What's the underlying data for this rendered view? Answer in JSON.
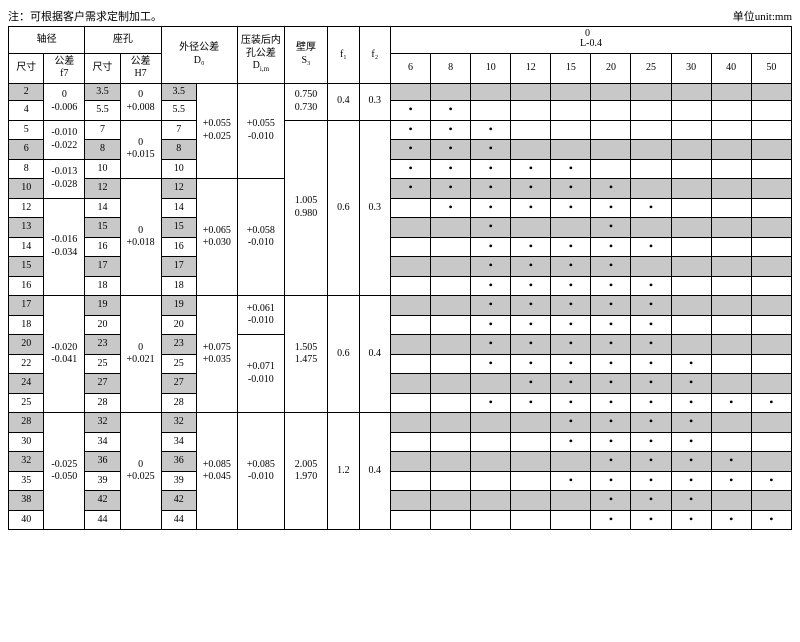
{
  "note": "注：可根据客户需求定制加工。",
  "unit_label": "单位unit:mm",
  "hdr": {
    "shaft_dia": "轴径",
    "seat_hole": "座孔",
    "od_tol": "外径公差",
    "d0_sym": "D₀",
    "press_bore": "压装后内",
    "press_bore2": "孔公差",
    "dim_sym": "D",
    "wall": "壁厚",
    "s3_sym": "S₃",
    "f1": "f₁",
    "f2": "f₂",
    "dim": "尺寸",
    "tol_f7": "公差",
    "f7": "f7",
    "tol_h7": "公差",
    "h7": "H7",
    "L": "L",
    "L_tol_up": "0",
    "L_tol_low": "-0.4"
  },
  "L_cols": [
    "6",
    "8",
    "10",
    "12",
    "15",
    "20",
    "25",
    "30",
    "40",
    "50"
  ],
  "tol": {
    "f7_a": [
      "0",
      "-0.006"
    ],
    "f7_b": [
      "-0.010",
      "-0.022"
    ],
    "f7_c": [
      "-0.013",
      "-0.028"
    ],
    "f7_d": [
      "-0.016",
      "-0.034"
    ],
    "f7_e": [
      "-0.020",
      "-0.041"
    ],
    "f7_f": [
      "-0.025",
      "-0.050"
    ],
    "h7_a": [
      "0",
      "+0.008"
    ],
    "h7_b": [
      "0",
      "+0.015"
    ],
    "h7_c": [
      "0",
      "+0.018"
    ],
    "h7_d": [
      "0",
      "+0.021"
    ],
    "h7_e": [
      "0",
      "+0.025"
    ],
    "d0_a": [
      "+0.055",
      "+0.025"
    ],
    "d0_b": [
      "+0.065",
      "+0.030"
    ],
    "d0_c": [
      "+0.075",
      "+0.035"
    ],
    "d0_d": [
      "+0.085",
      "+0.045"
    ],
    "dim_a": [
      "+0.055",
      "-0.010"
    ],
    "dim_b": [
      "+0.058",
      "-0.010"
    ],
    "dim_c": [
      "+0.061",
      "-0.010"
    ],
    "dim_d": [
      "+0.071",
      "-0.010"
    ],
    "dim_e": [
      "+0.085",
      "-0.010"
    ]
  },
  "s3": {
    "a": [
      "0.750",
      "0.730"
    ],
    "b": [
      "1.005",
      "0.980"
    ],
    "c": [
      "1.505",
      "1.475"
    ],
    "d": [
      "2.005",
      "1.970"
    ]
  },
  "f": {
    "a1": "0.4",
    "a2": "0.3",
    "b1": "0.6",
    "b2": "0.3",
    "c1": "0.6",
    "c2": "0.4",
    "d1": "1.2",
    "d2": "0.4"
  },
  "rows": [
    {
      "sh": true,
      "d": "2",
      "b": "3.5",
      "d0": "3.5",
      "dots": [
        0,
        0,
        0,
        0,
        0,
        0,
        0,
        0,
        0,
        0
      ]
    },
    {
      "sh": false,
      "d": "4",
      "b": "5.5",
      "d0": "5.5",
      "dots": [
        1,
        1,
        0,
        0,
        0,
        0,
        0,
        0,
        0,
        0
      ]
    },
    {
      "sh": false,
      "d": "5",
      "b": "7",
      "d0": "7",
      "dots": [
        1,
        1,
        1,
        0,
        0,
        0,
        0,
        0,
        0,
        0
      ]
    },
    {
      "sh": true,
      "d": "6",
      "b": "8",
      "d0": "8",
      "dots": [
        1,
        1,
        1,
        0,
        0,
        0,
        0,
        0,
        0,
        0
      ]
    },
    {
      "sh": false,
      "d": "8",
      "b": "10",
      "d0": "10",
      "dots": [
        1,
        1,
        1,
        1,
        1,
        0,
        0,
        0,
        0,
        0
      ]
    },
    {
      "sh": true,
      "d": "10",
      "b": "12",
      "d0": "12",
      "dots": [
        1,
        1,
        1,
        1,
        1,
        1,
        0,
        0,
        0,
        0
      ]
    },
    {
      "sh": false,
      "d": "12",
      "b": "14",
      "d0": "14",
      "dots": [
        0,
        1,
        1,
        1,
        1,
        1,
        1,
        0,
        0,
        0
      ]
    },
    {
      "sh": true,
      "d": "13",
      "b": "15",
      "d0": "15",
      "dots": [
        0,
        0,
        1,
        0,
        0,
        1,
        0,
        0,
        0,
        0
      ]
    },
    {
      "sh": false,
      "d": "14",
      "b": "16",
      "d0": "16",
      "dots": [
        0,
        0,
        1,
        1,
        1,
        1,
        1,
        0,
        0,
        0
      ]
    },
    {
      "sh": true,
      "d": "15",
      "b": "17",
      "d0": "17",
      "dots": [
        0,
        0,
        1,
        1,
        1,
        1,
        0,
        0,
        0,
        0
      ]
    },
    {
      "sh": false,
      "d": "16",
      "b": "18",
      "d0": "18",
      "dots": [
        0,
        0,
        1,
        1,
        1,
        1,
        1,
        0,
        0,
        0
      ]
    },
    {
      "sh": true,
      "d": "17",
      "b": "19",
      "d0": "19",
      "dots": [
        0,
        0,
        1,
        1,
        1,
        1,
        1,
        0,
        0,
        0
      ]
    },
    {
      "sh": false,
      "d": "18",
      "b": "20",
      "d0": "20",
      "dots": [
        0,
        0,
        1,
        1,
        1,
        1,
        1,
        0,
        0,
        0
      ]
    },
    {
      "sh": true,
      "d": "20",
      "b": "23",
      "d0": "23",
      "dots": [
        0,
        0,
        1,
        1,
        1,
        1,
        1,
        0,
        0,
        0
      ]
    },
    {
      "sh": false,
      "d": "22",
      "b": "25",
      "d0": "25",
      "dots": [
        0,
        0,
        1,
        1,
        1,
        1,
        1,
        1,
        0,
        0
      ]
    },
    {
      "sh": true,
      "d": "24",
      "b": "27",
      "d0": "27",
      "dots": [
        0,
        0,
        0,
        1,
        1,
        1,
        1,
        1,
        0,
        0
      ]
    },
    {
      "sh": false,
      "d": "25",
      "b": "28",
      "d0": "28",
      "dots": [
        0,
        0,
        1,
        1,
        1,
        1,
        1,
        1,
        1,
        1
      ]
    },
    {
      "sh": true,
      "d": "28",
      "b": "32",
      "d0": "32",
      "dots": [
        0,
        0,
        0,
        0,
        1,
        1,
        1,
        1,
        0,
        0
      ]
    },
    {
      "sh": false,
      "d": "30",
      "b": "34",
      "d0": "34",
      "dots": [
        0,
        0,
        0,
        0,
        1,
        1,
        1,
        1,
        0,
        0
      ]
    },
    {
      "sh": true,
      "d": "32",
      "b": "36",
      "d0": "36",
      "dots": [
        0,
        0,
        0,
        0,
        0,
        1,
        1,
        1,
        1,
        0
      ]
    },
    {
      "sh": false,
      "d": "35",
      "b": "39",
      "d0": "39",
      "dots": [
        0,
        0,
        0,
        0,
        1,
        1,
        1,
        1,
        1,
        1
      ]
    },
    {
      "sh": true,
      "d": "38",
      "b": "42",
      "d0": "42",
      "dots": [
        0,
        0,
        0,
        0,
        0,
        1,
        1,
        1,
        0,
        0
      ]
    },
    {
      "sh": false,
      "d": "40",
      "b": "44",
      "d0": "44",
      "dots": [
        0,
        0,
        0,
        0,
        0,
        1,
        1,
        1,
        1,
        1
      ]
    }
  ],
  "colors": {
    "shaded": "#c8c8c8",
    "border": "#000000",
    "bg": "#ffffff"
  }
}
